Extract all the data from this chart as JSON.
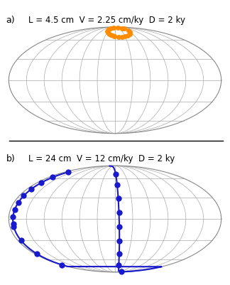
{
  "title_a": "L = 4.5 cm  V = 2.25 cm/ky  D = 2 ky",
  "title_b": "L = 24 cm  V = 12 cm/ky  D = 2 ky",
  "label_a": "a)",
  "label_b": "b)",
  "color_a": "#FF8C00",
  "color_b": "#1A1ACD",
  "bg_color": "#FFFFFF",
  "grid_color": "#AAAAAA",
  "border_color": "#888888",
  "title_fontsize": 8.5,
  "label_fontsize": 9,
  "linewidth_a": 1.0,
  "linewidth_b": 1.5,
  "markersize_a": 5,
  "markersize_b": 6
}
